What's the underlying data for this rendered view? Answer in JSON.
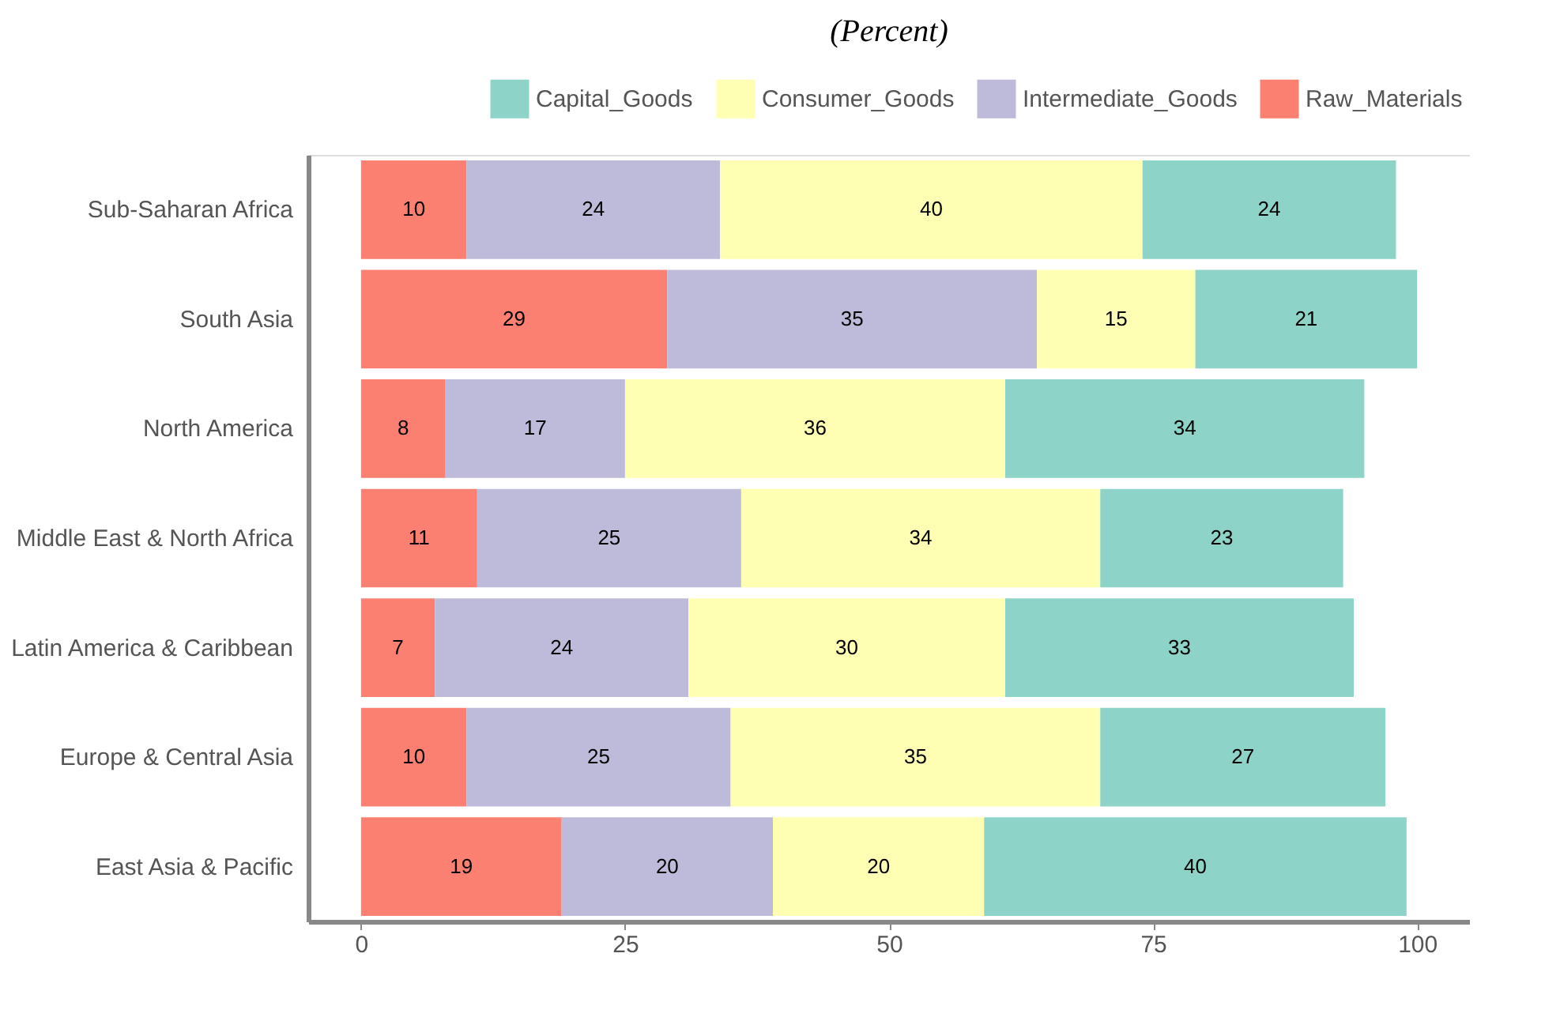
{
  "chart_data": {
    "type": "bar",
    "orientation": "horizontal",
    "stacked": true,
    "title": "(Percent)",
    "categories": [
      "Sub-Saharan Africa",
      "South Asia",
      "North America",
      "Middle East & North Africa",
      "Latin America & Caribbean",
      "Europe & Central Asia",
      "East Asia & Pacific"
    ],
    "series": [
      {
        "name": "Raw_Materials",
        "color": "#fb8072",
        "values": [
          10,
          29,
          8,
          11,
          7,
          10,
          19
        ]
      },
      {
        "name": "Intermediate_Goods",
        "color": "#bebada",
        "values": [
          24,
          35,
          17,
          25,
          24,
          25,
          20
        ]
      },
      {
        "name": "Consumer_Goods",
        "color": "#ffffb3",
        "values": [
          40,
          15,
          36,
          34,
          30,
          35,
          20
        ]
      },
      {
        "name": "Capital_Goods",
        "color": "#8dd3c7",
        "values": [
          24,
          21,
          34,
          23,
          33,
          27,
          40
        ]
      }
    ],
    "xlim": [
      -5,
      105
    ],
    "xticks": [
      0,
      25,
      50,
      75,
      100
    ],
    "data_labels": true,
    "grid": false,
    "legend": "top right"
  }
}
